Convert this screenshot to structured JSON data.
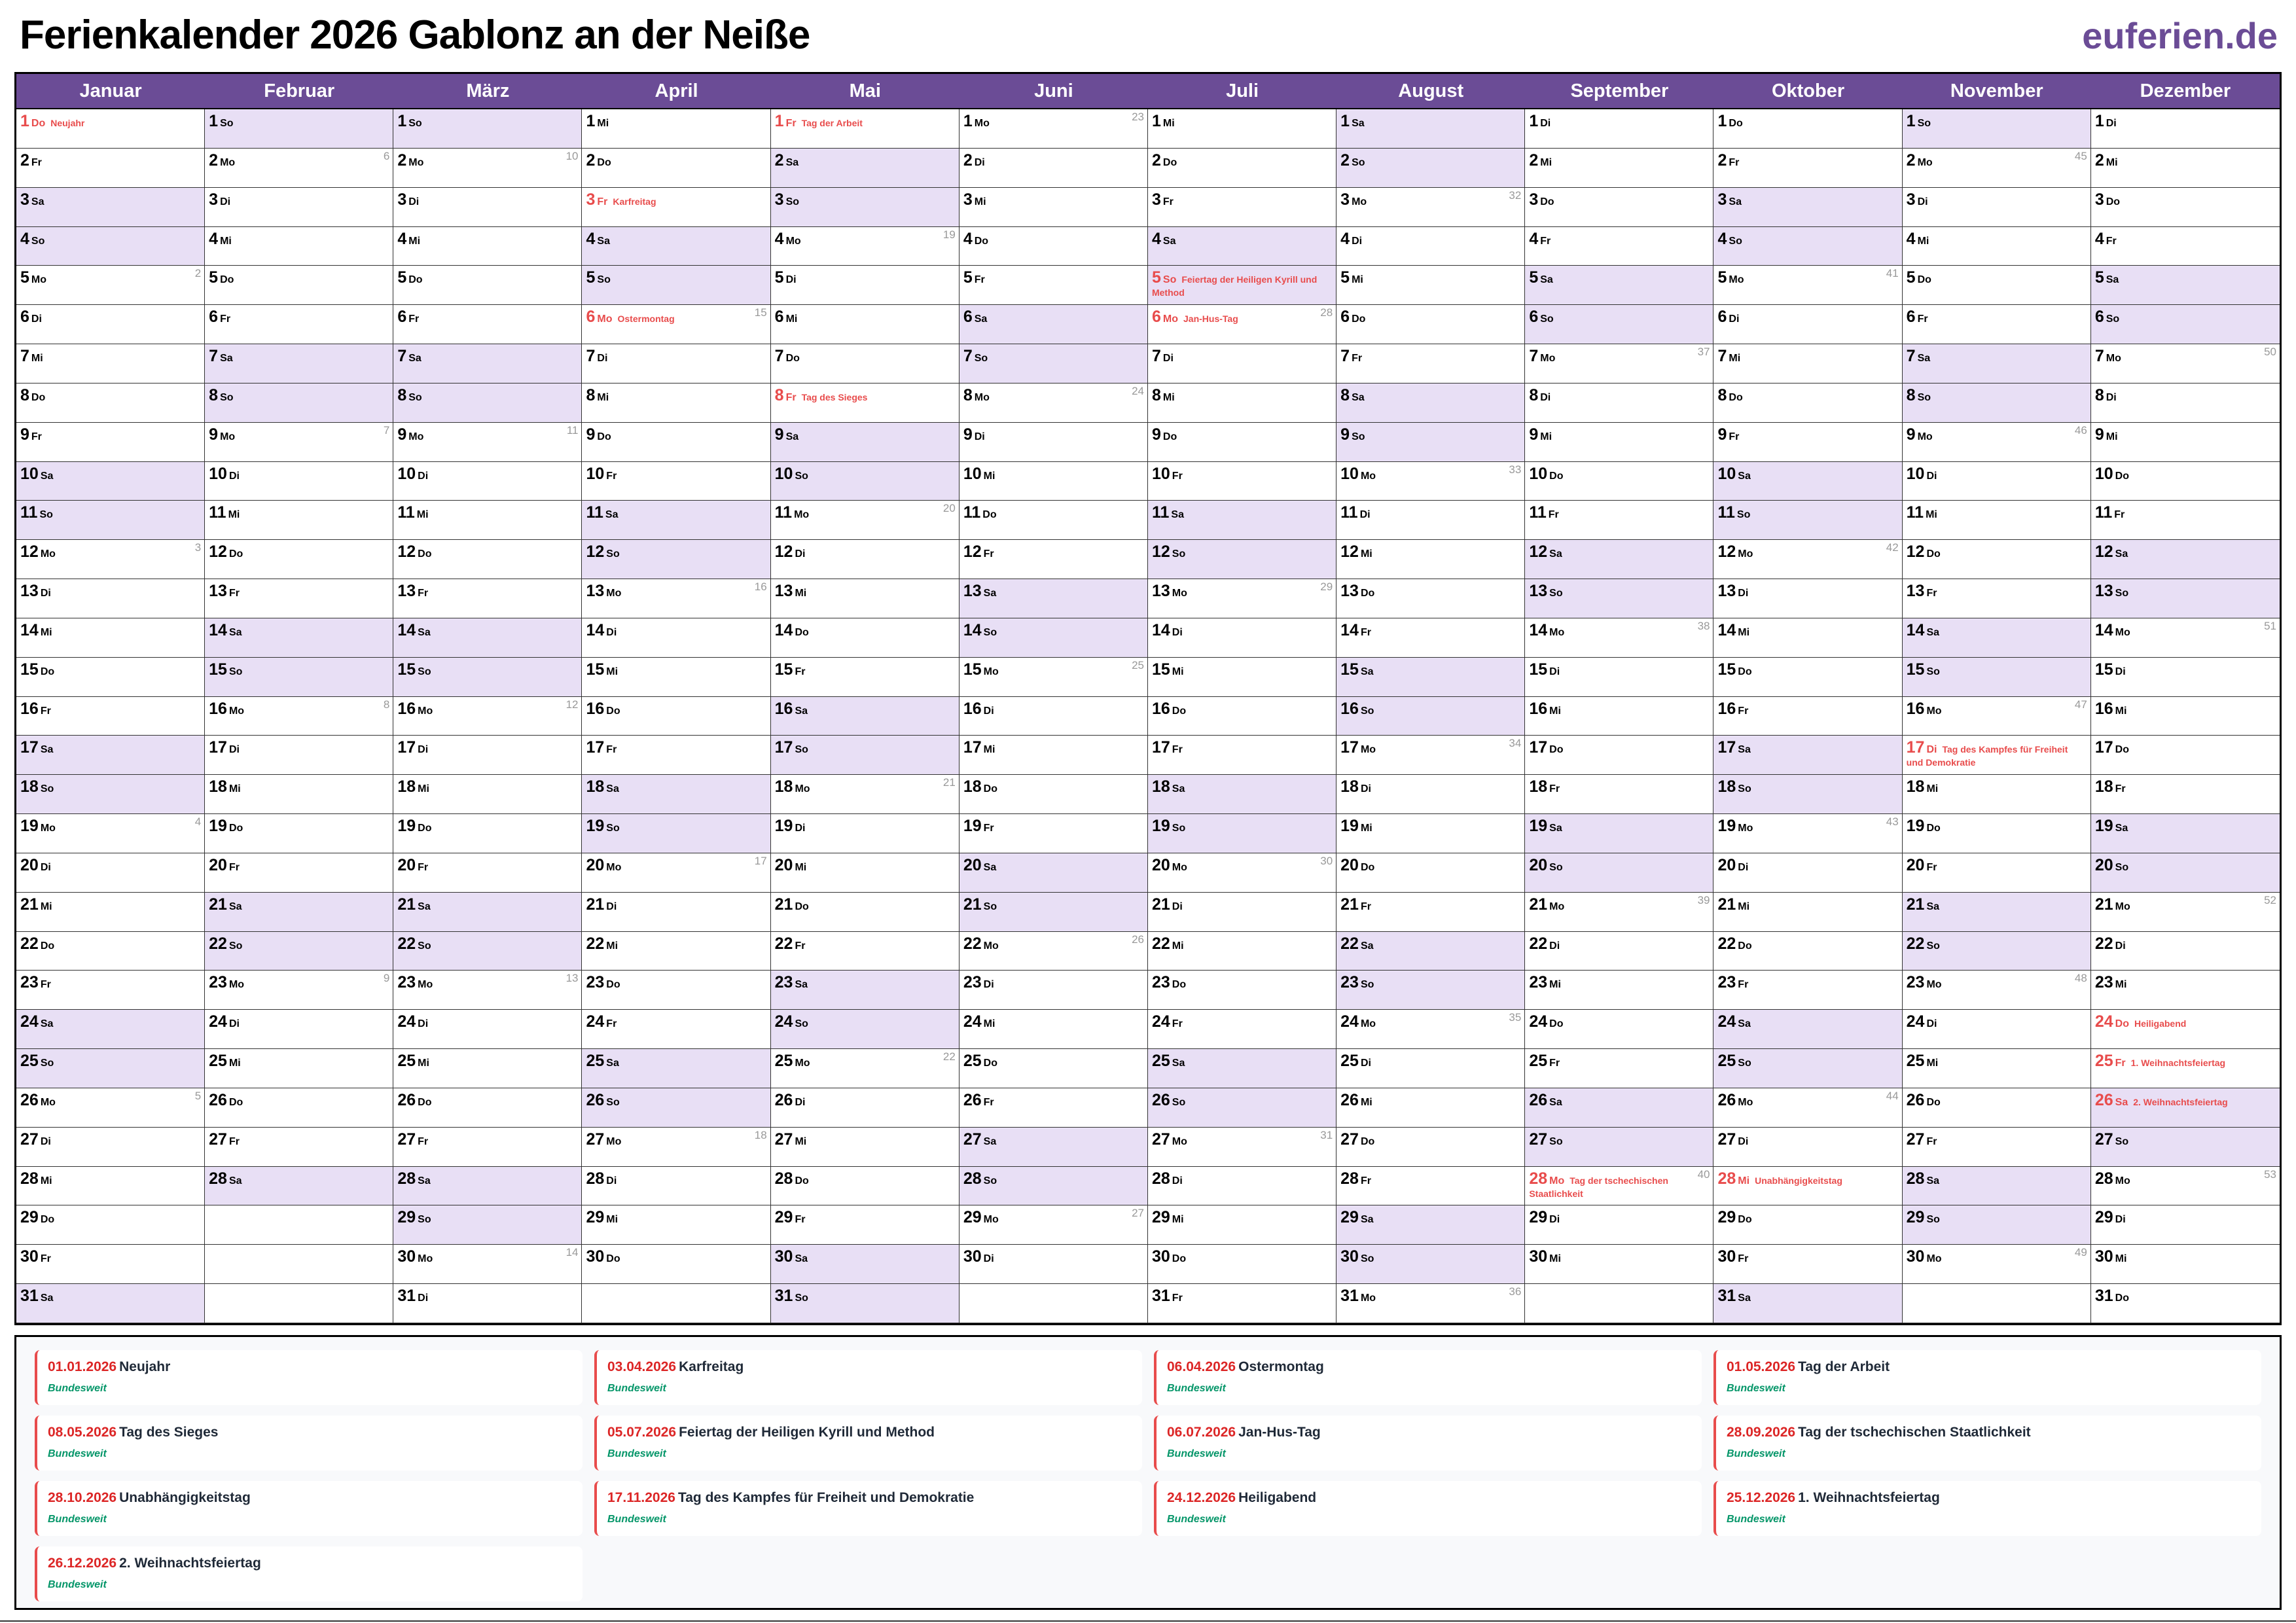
{
  "header": {
    "title": "Ferienkalender 2026 Gablonz an der Neiße",
    "logo": "euferien.de"
  },
  "colors": {
    "header_bg": "#6b4c96",
    "weekend_bg": "#e8dff5",
    "holiday": "#e84c4c",
    "legend_date": "#dc2626",
    "legend_region": "#059669"
  },
  "weekday_labels": [
    "Mo",
    "Di",
    "Mi",
    "Do",
    "Fr",
    "Sa",
    "So"
  ],
  "weekend_days": [
    "Sa",
    "So"
  ],
  "months": [
    {
      "name": "Januar",
      "first_weekday": "Do",
      "days": 31,
      "week_numbers": {
        "5": "2",
        "12": "3",
        "19": "4",
        "26": "5"
      },
      "holidays": {
        "1": "Neujahr"
      }
    },
    {
      "name": "Februar",
      "first_weekday": "So",
      "days": 28,
      "week_numbers": {
        "2": "6",
        "9": "7",
        "16": "8",
        "23": "9"
      },
      "holidays": {}
    },
    {
      "name": "März",
      "first_weekday": "So",
      "days": 31,
      "week_numbers": {
        "2": "10",
        "9": "11",
        "16": "12",
        "23": "13",
        "30": "14"
      },
      "holidays": {}
    },
    {
      "name": "April",
      "first_weekday": "Mi",
      "days": 30,
      "week_numbers": {
        "6": "15",
        "13": "16",
        "20": "17",
        "27": "18"
      },
      "holidays": {
        "3": "Karfreitag",
        "6": "Ostermontag"
      }
    },
    {
      "name": "Mai",
      "first_weekday": "Fr",
      "days": 31,
      "week_numbers": {
        "4": "19",
        "11": "20",
        "18": "21",
        "25": "22"
      },
      "holidays": {
        "1": "Tag der Arbeit",
        "8": "Tag des Sieges"
      }
    },
    {
      "name": "Juni",
      "first_weekday": "Mo",
      "days": 30,
      "week_numbers": {
        "1": "23",
        "8": "24",
        "15": "25",
        "22": "26",
        "29": "27"
      },
      "holidays": {}
    },
    {
      "name": "Juli",
      "first_weekday": "Mi",
      "days": 31,
      "week_numbers": {
        "6": "28",
        "13": "29",
        "20": "30",
        "27": "31"
      },
      "holidays": {
        "5": "Feiertag der Heiligen Kyrill und Method",
        "6": "Jan-Hus-Tag"
      }
    },
    {
      "name": "August",
      "first_weekday": "Sa",
      "days": 31,
      "week_numbers": {
        "3": "32",
        "10": "33",
        "17": "34",
        "24": "35",
        "31": "36"
      },
      "holidays": {}
    },
    {
      "name": "September",
      "first_weekday": "Di",
      "days": 30,
      "week_numbers": {
        "7": "37",
        "14": "38",
        "21": "39",
        "28": "40"
      },
      "holidays": {
        "28": "Tag der tschechischen Staatlichkeit"
      }
    },
    {
      "name": "Oktober",
      "first_weekday": "Do",
      "days": 31,
      "week_numbers": {
        "5": "41",
        "12": "42",
        "19": "43",
        "26": "44"
      },
      "holidays": {
        "28": "Unabhängigkeitstag"
      }
    },
    {
      "name": "November",
      "first_weekday": "So",
      "days": 30,
      "week_numbers": {
        "2": "45",
        "9": "46",
        "16": "47",
        "23": "48",
        "30": "49"
      },
      "holidays": {
        "17": "Tag des Kampfes für Freiheit und Demokratie"
      }
    },
    {
      "name": "Dezember",
      "first_weekday": "Di",
      "days": 31,
      "week_numbers": {
        "7": "50",
        "14": "51",
        "21": "52",
        "28": "53"
      },
      "holidays": {
        "24": "Heiligabend",
        "25": "1. Weihnachtsfeiertag",
        "26": "2. Weihnachtsfeiertag"
      }
    }
  ],
  "legend": [
    {
      "date": "01.01.2026",
      "name": "Neujahr",
      "region": "Bundesweit"
    },
    {
      "date": "03.04.2026",
      "name": "Karfreitag",
      "region": "Bundesweit"
    },
    {
      "date": "06.04.2026",
      "name": "Ostermontag",
      "region": "Bundesweit"
    },
    {
      "date": "01.05.2026",
      "name": "Tag der Arbeit",
      "region": "Bundesweit"
    },
    {
      "date": "08.05.2026",
      "name": "Tag des Sieges",
      "region": "Bundesweit"
    },
    {
      "date": "05.07.2026",
      "name": "Feiertag der Heiligen Kyrill und Method",
      "region": "Bundesweit"
    },
    {
      "date": "06.07.2026",
      "name": "Jan-Hus-Tag",
      "region": "Bundesweit"
    },
    {
      "date": "28.09.2026",
      "name": "Tag der tschechischen Staatlichkeit",
      "region": "Bundesweit"
    },
    {
      "date": "28.10.2026",
      "name": "Unabhängigkeitstag",
      "region": "Bundesweit"
    },
    {
      "date": "17.11.2026",
      "name": "Tag des Kampfes für Freiheit und Demokratie",
      "region": "Bundesweit"
    },
    {
      "date": "24.12.2026",
      "name": "Heiligabend",
      "region": "Bundesweit"
    },
    {
      "date": "25.12.2026",
      "name": "1. Weihnachtsfeiertag",
      "region": "Bundesweit"
    },
    {
      "date": "26.12.2026",
      "name": "2. Weihnachtsfeiertag",
      "region": "Bundesweit"
    }
  ]
}
